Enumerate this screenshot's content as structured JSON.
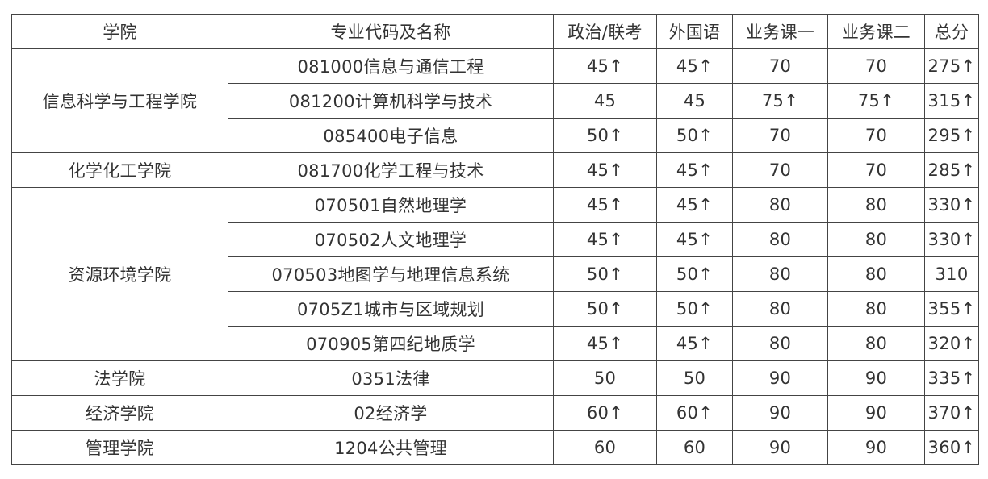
{
  "headers": [
    "学院",
    "专业代码及名称",
    "政治/联考",
    "外国语",
    "业务课一",
    "业务课二",
    "总分"
  ],
  "groups": [
    {
      "college": "信息科学与工程学院",
      "rows": [
        [
          "081000信息与通信工程",
          "45↑",
          "45↑",
          "70",
          "70",
          "275↑"
        ],
        [
          "081200计算机科学与技术",
          "45",
          "45",
          "75↑",
          "75↑",
          "315↑"
        ],
        [
          "085400电子信息",
          "50↑",
          "50↑",
          "70",
          "70",
          "295↑"
        ]
      ]
    },
    {
      "college": "化学化工学院",
      "rows": [
        [
          "081700化学工程与技术",
          "45↑",
          "45↑",
          "70",
          "70",
          "285↑"
        ]
      ]
    },
    {
      "college": "资源环境学院",
      "rows": [
        [
          "070501自然地理学",
          "45↑",
          "45↑",
          "80",
          "80",
          "330↑"
        ],
        [
          "070502人文地理学",
          "45↑",
          "45↑",
          "80",
          "80",
          "330↑"
        ],
        [
          "070503地图学与地理信息系统",
          "50↑",
          "50↑",
          "80",
          "80",
          "310"
        ],
        [
          "0705Z1城市与区域规划",
          "50↑",
          "50↑",
          "80",
          "80",
          "355↑"
        ],
        [
          "070905第四纪地质学",
          "45↑",
          "45↑",
          "80",
          "80",
          "320↑"
        ]
      ]
    },
    {
      "college": "法学院",
      "rows": [
        [
          "0351法律",
          "50",
          "50",
          "90",
          "90",
          "335↑"
        ]
      ]
    },
    {
      "college": "经济学院",
      "rows": [
        [
          "02经济学",
          "60↑",
          "60↑",
          "90",
          "90",
          "370↑"
        ]
      ]
    },
    {
      "college": "管理学院",
      "rows": [
        [
          "1204公共管理",
          "60",
          "60",
          "90",
          "90",
          "360↑"
        ]
      ]
    }
  ]
}
